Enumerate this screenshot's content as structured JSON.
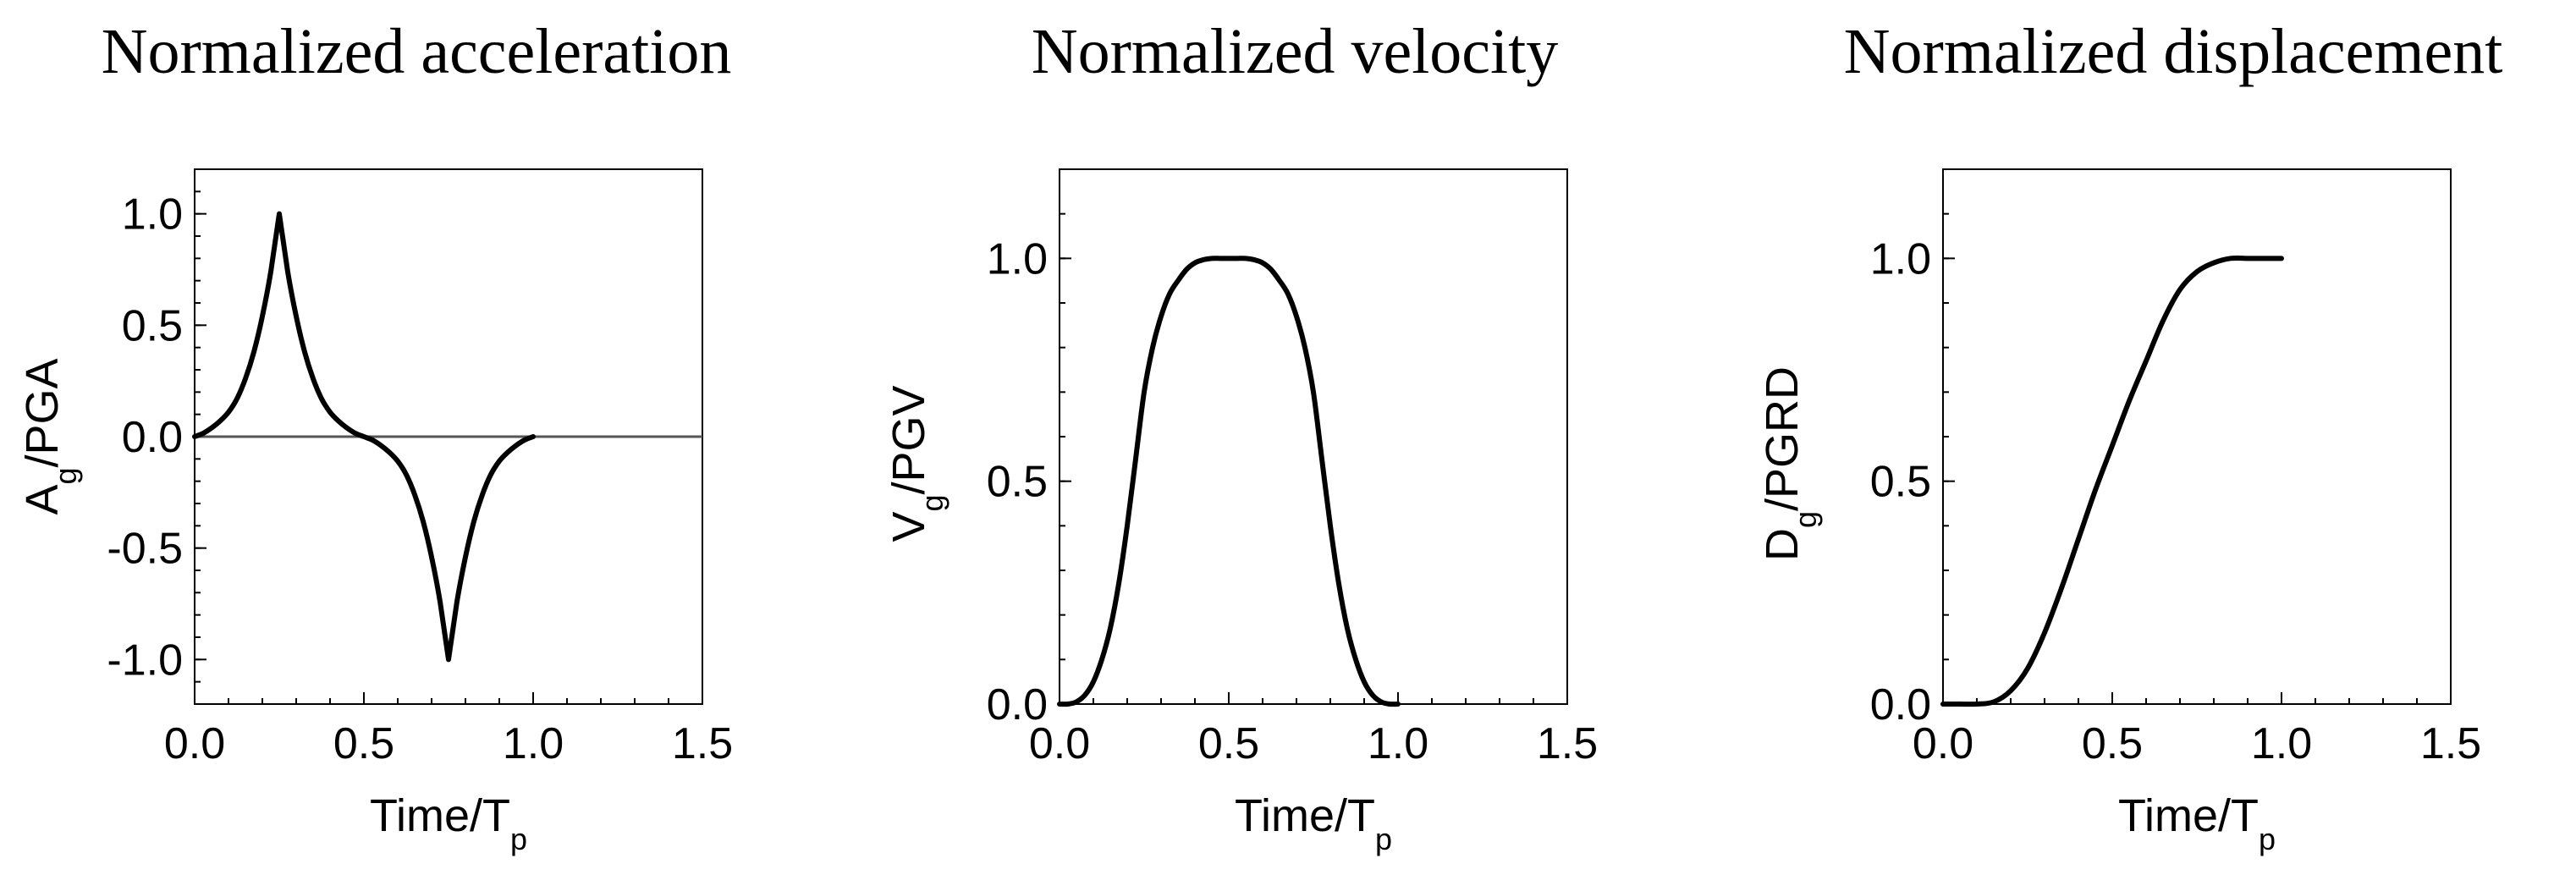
{
  "colors": {
    "line": "#000000",
    "zero_line": "#555555",
    "background": "#ffffff"
  },
  "chart_data": [
    {
      "type": "line",
      "title": "Normalized acceleration",
      "ylabel_main": "A",
      "ylabel_sub": "g",
      "ylabel_rest": "/PGA",
      "xlabel_main": "Time/T",
      "xlabel_sub": "p",
      "xlim": [
        0.0,
        1.5
      ],
      "ylim": [
        -1.2,
        1.2
      ],
      "x_ticks": [
        0.0,
        0.5,
        1.0,
        1.5
      ],
      "x_tick_labels": [
        "0.0",
        "0.5",
        "1.0",
        "1.5"
      ],
      "y_ticks": [
        -1.0,
        -0.5,
        0.0,
        0.5,
        1.0
      ],
      "y_tick_labels": [
        "-1.0",
        "-0.5",
        "0.0",
        "0.5",
        "1.0"
      ],
      "zero_line": true,
      "series": [
        {
          "name": "A_g/PGA",
          "x": [
            0.0,
            0.025,
            0.05,
            0.075,
            0.1,
            0.125,
            0.15,
            0.175,
            0.2,
            0.225,
            0.25,
            0.275,
            0.3,
            0.325,
            0.35,
            0.375,
            0.4,
            0.425,
            0.45,
            0.475,
            0.5,
            0.525,
            0.55,
            0.575,
            0.6,
            0.625,
            0.65,
            0.675,
            0.7,
            0.725,
            0.75,
            0.775,
            0.8,
            0.825,
            0.85,
            0.875,
            0.9,
            0.925,
            0.95,
            0.975,
            1.0
          ],
          "y": [
            0.0,
            0.015,
            0.039,
            0.07,
            0.11,
            0.17,
            0.26,
            0.38,
            0.54,
            0.74,
            1.0,
            0.74,
            0.54,
            0.38,
            0.26,
            0.17,
            0.11,
            0.07,
            0.039,
            0.015,
            0.0,
            -0.015,
            -0.039,
            -0.07,
            -0.11,
            -0.17,
            -0.26,
            -0.38,
            -0.54,
            -0.74,
            -1.0,
            -0.74,
            -0.54,
            -0.38,
            -0.26,
            -0.17,
            -0.11,
            -0.07,
            -0.039,
            -0.015,
            0.0
          ]
        }
      ]
    },
    {
      "type": "line",
      "title": "Normalized velocity",
      "ylabel_main": "V",
      "ylabel_sub": "g",
      "ylabel_rest": "/PGV",
      "xlabel_main": "Time/T",
      "xlabel_sub": "p",
      "xlim": [
        0.0,
        1.5
      ],
      "ylim": [
        0.0,
        1.2
      ],
      "x_ticks": [
        0.0,
        0.5,
        1.0,
        1.5
      ],
      "x_tick_labels": [
        "0.0",
        "0.5",
        "1.0",
        "1.5"
      ],
      "y_ticks": [
        0.0,
        0.5,
        1.0
      ],
      "y_tick_labels": [
        "0.0",
        "0.5",
        "1.0"
      ],
      "zero_line": false,
      "series": [
        {
          "name": "V_g/PGV",
          "x": [
            0.0,
            0.025,
            0.05,
            0.075,
            0.1,
            0.125,
            0.15,
            0.175,
            0.2,
            0.225,
            0.25,
            0.275,
            0.3,
            0.325,
            0.35,
            0.375,
            0.4,
            0.425,
            0.45,
            0.475,
            0.5,
            0.525,
            0.55,
            0.575,
            0.6,
            0.625,
            0.65,
            0.675,
            0.7,
            0.725,
            0.75,
            0.775,
            0.8,
            0.825,
            0.85,
            0.875,
            0.9,
            0.925,
            0.95,
            0.975,
            1.0
          ],
          "y": [
            0.0,
            0.0,
            0.005,
            0.02,
            0.05,
            0.1,
            0.17,
            0.27,
            0.4,
            0.55,
            0.7,
            0.8,
            0.87,
            0.92,
            0.95,
            0.975,
            0.99,
            0.997,
            1.0,
            1.0,
            1.0,
            1.0,
            1.0,
            0.997,
            0.99,
            0.975,
            0.95,
            0.92,
            0.87,
            0.8,
            0.7,
            0.55,
            0.4,
            0.27,
            0.17,
            0.1,
            0.05,
            0.02,
            0.005,
            0.0,
            0.0
          ]
        }
      ]
    },
    {
      "type": "line",
      "title": "Normalized displacement",
      "ylabel_main": "D",
      "ylabel_sub": "g",
      "ylabel_rest": "/PGRD",
      "xlabel_main": "Time/T",
      "xlabel_sub": "p",
      "xlim": [
        0.0,
        1.5
      ],
      "ylim": [
        0.0,
        1.2
      ],
      "x_ticks": [
        0.0,
        0.5,
        1.0,
        1.5
      ],
      "x_tick_labels": [
        "0.0",
        "0.5",
        "1.0",
        "1.5"
      ],
      "y_ticks": [
        0.0,
        0.5,
        1.0
      ],
      "y_tick_labels": [
        "0.0",
        "0.5",
        "1.0"
      ],
      "zero_line": false,
      "series": [
        {
          "name": "D_g/PGRD",
          "x": [
            0.0,
            0.05,
            0.1,
            0.15,
            0.2,
            0.25,
            0.3,
            0.35,
            0.4,
            0.45,
            0.5,
            0.55,
            0.6,
            0.65,
            0.7,
            0.75,
            0.8,
            0.85,
            0.9,
            0.95,
            1.0
          ],
          "y": [
            0.0,
            0.0,
            0.0,
            0.005,
            0.03,
            0.08,
            0.16,
            0.26,
            0.37,
            0.48,
            0.58,
            0.68,
            0.77,
            0.86,
            0.93,
            0.97,
            0.99,
            1.0,
            1.0,
            1.0,
            1.0
          ]
        }
      ]
    }
  ]
}
